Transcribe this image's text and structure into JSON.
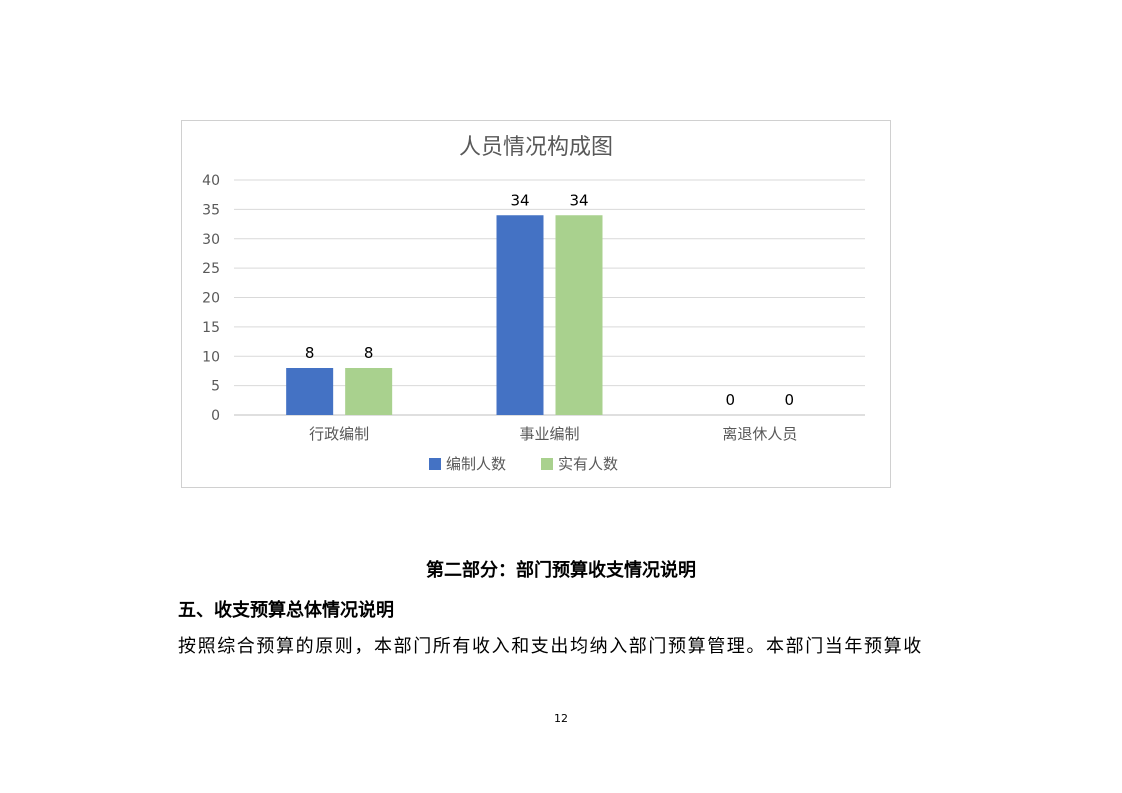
{
  "chart_data": {
    "type": "bar",
    "title": "人员情况构成图",
    "categories": [
      "行政编制",
      "事业编制",
      "离退休人员"
    ],
    "series": [
      {
        "name": "编制人数",
        "values": [
          8,
          34,
          0
        ],
        "color": "#4472C4"
      },
      {
        "name": "实有人数",
        "values": [
          8,
          34,
          0
        ],
        "color": "#A9D18E"
      }
    ],
    "ylim": [
      0,
      40
    ],
    "yticks": [
      0,
      5,
      10,
      15,
      20,
      25,
      30,
      35,
      40
    ],
    "grid": true,
    "legend": "bottom",
    "data_labels": true
  },
  "section_title": "第二部分：部门预算收支情况说明",
  "heading": "五、收支预算总体情况说明",
  "paragraph": "按照综合预算的原则，本部门所有收入和支出均纳入部门预算管理。本部门当年预算收",
  "page_number": "12"
}
